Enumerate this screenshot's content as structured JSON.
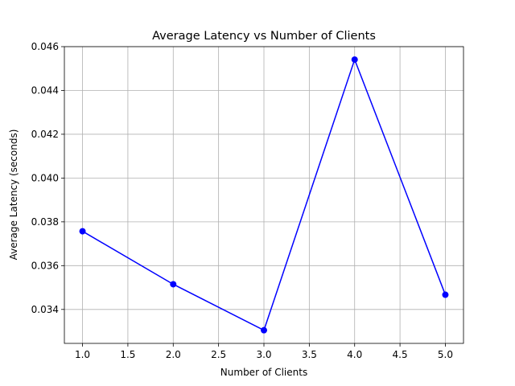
{
  "chart_data": {
    "type": "line",
    "title": "Average Latency vs Number of Clients",
    "xlabel": "Number of Clients",
    "ylabel": "Average Latency (seconds)",
    "x": [
      1.0,
      2.0,
      3.0,
      4.0,
      5.0
    ],
    "series": [
      {
        "values": [
          0.03757,
          0.03515,
          0.03305,
          0.04541,
          0.03467
        ],
        "color": "#0000ff",
        "marker": "circle"
      }
    ],
    "xlim": [
      0.8,
      5.2
    ],
    "ylim": [
      0.03245,
      0.046
    ],
    "xticks": [
      "1.0",
      "1.5",
      "2.0",
      "2.5",
      "3.0",
      "3.5",
      "4.0",
      "4.5",
      "5.0"
    ],
    "xtick_values": [
      1.0,
      1.5,
      2.0,
      2.5,
      3.0,
      3.5,
      4.0,
      4.5,
      5.0
    ],
    "yticks": [
      "0.034",
      "0.036",
      "0.038",
      "0.040",
      "0.042",
      "0.044",
      "0.046"
    ],
    "ytick_values": [
      0.034,
      0.036,
      0.038,
      0.04,
      0.042,
      0.044,
      0.046
    ],
    "grid": true,
    "legend": "none"
  }
}
